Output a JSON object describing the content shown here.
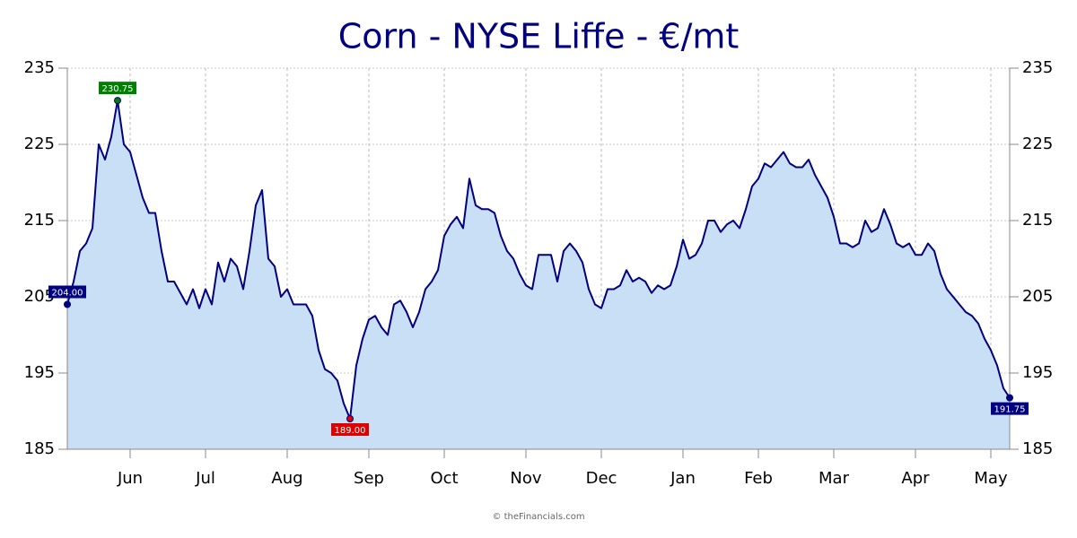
{
  "chart_data": {
    "type": "area",
    "title": "Corn - NYSE Liffe - €/mt",
    "credit": "© theFinancials.com",
    "line_color": "#000080",
    "fill_color": "#c9dff5",
    "ylim": [
      185,
      235
    ],
    "yticks": [
      185,
      195,
      205,
      215,
      225,
      235
    ],
    "grid": true,
    "categories": [
      null,
      null,
      null,
      null,
      null,
      null,
      null,
      null,
      null,
      null,
      "Jun",
      null,
      null,
      null,
      null,
      null,
      null,
      null,
      null,
      null,
      null,
      null,
      "Jul",
      null,
      null,
      null,
      null,
      null,
      null,
      null,
      null,
      null,
      null,
      null,
      null,
      "Aug",
      null,
      null,
      null,
      null,
      null,
      null,
      null,
      null,
      null,
      null,
      null,
      null,
      "Sep",
      null,
      null,
      null,
      null,
      null,
      null,
      null,
      null,
      null,
      null,
      null,
      "Oct",
      null,
      null,
      null,
      null,
      null,
      null,
      null,
      null,
      null,
      null,
      null,
      null,
      "Nov",
      null,
      null,
      null,
      null,
      null,
      null,
      null,
      null,
      null,
      null,
      null,
      "Dec",
      null,
      null,
      null,
      null,
      null,
      null,
      null,
      null,
      null,
      null,
      null,
      null,
      "Jan",
      null,
      null,
      null,
      null,
      null,
      null,
      null,
      null,
      null,
      null,
      null,
      "Feb",
      null,
      null,
      null,
      null,
      null,
      null,
      null,
      null,
      null,
      null,
      null,
      "Mar",
      null,
      null,
      null,
      null,
      null,
      null,
      null,
      null,
      null,
      null,
      null,
      null,
      "Apr",
      null,
      null,
      null,
      null,
      null,
      null,
      null,
      null,
      null,
      null,
      null,
      "May",
      null,
      null,
      null
    ],
    "values": [
      204,
      207,
      211,
      212,
      214,
      225,
      223,
      226,
      230.75,
      225,
      224,
      221,
      218,
      216,
      216,
      211,
      207,
      207,
      205.5,
      204,
      206,
      203.5,
      206,
      204,
      209.5,
      207,
      210,
      209,
      206,
      211,
      217,
      219,
      210,
      209,
      205,
      206,
      204,
      204,
      204,
      202.5,
      198,
      195.5,
      195,
      194,
      191,
      189,
      196,
      199.5,
      202,
      202.5,
      201,
      200,
      204,
      204.5,
      203,
      201,
      203,
      206,
      207,
      208.5,
      213,
      214.5,
      215.5,
      214,
      220.5,
      217,
      216.5,
      216.5,
      216,
      213,
      211,
      210,
      208,
      206.5,
      206,
      210.5,
      210.5,
      210.5,
      207,
      211,
      212,
      211,
      209.5,
      206,
      204,
      203.5,
      206,
      206,
      206.5,
      208.5,
      207,
      207.5,
      207,
      205.5,
      206.5,
      206,
      206.5,
      209,
      212.5,
      210,
      210.5,
      212,
      215,
      215,
      213.5,
      214.5,
      215,
      214,
      216.5,
      219.5,
      220.5,
      222.5,
      222,
      223,
      224,
      222.5,
      222,
      222,
      223,
      221,
      219.5,
      218,
      215.5,
      212,
      212,
      211.5,
      212,
      215,
      213.5,
      214,
      216.5,
      214.5,
      212,
      211.5,
      212,
      210.5,
      210.5,
      212,
      211,
      208,
      206,
      205,
      204,
      203,
      202.5,
      201.5,
      199.5,
      198,
      196,
      193,
      191.75
    ],
    "value_labels": [
      "204.00",
      null,
      null,
      null,
      null,
      null,
      null,
      null,
      "230.75",
      null,
      null,
      null,
      null,
      null,
      null,
      null,
      null,
      null,
      null,
      null,
      null,
      null,
      null,
      null,
      null,
      null,
      null,
      null,
      null,
      null,
      null,
      null,
      null,
      null,
      null,
      null,
      null,
      null,
      null,
      null,
      null,
      null,
      null,
      null,
      null,
      "189.00",
      null,
      null,
      null,
      null,
      null,
      null,
      null,
      null,
      null,
      null,
      null,
      null,
      null,
      null,
      null,
      null,
      null,
      null,
      null,
      null,
      null,
      null,
      null,
      null,
      null,
      null,
      null,
      null,
      null,
      null,
      null,
      null,
      null,
      null,
      null,
      null,
      null,
      null,
      null,
      null,
      null,
      null,
      null,
      null,
      null,
      null,
      null,
      null,
      null,
      null,
      null,
      null,
      null,
      null,
      null,
      null,
      null,
      null,
      null,
      null,
      null,
      null,
      null,
      null,
      null,
      null,
      null,
      null,
      null,
      null,
      null,
      null,
      null,
      null,
      null,
      null,
      null,
      null,
      null,
      null,
      null,
      null,
      null,
      null,
      null,
      null,
      null,
      null,
      null,
      null,
      null,
      null,
      null,
      null,
      null,
      null,
      null,
      null,
      null,
      null,
      null,
      null,
      null,
      null,
      "191.75"
    ]
  }
}
